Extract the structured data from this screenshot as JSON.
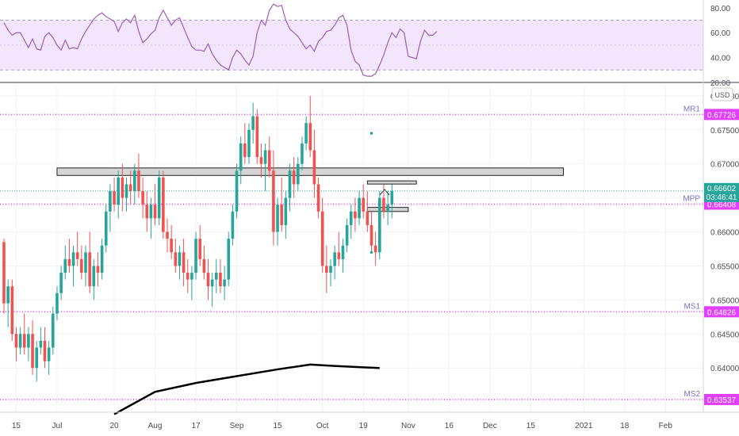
{
  "chart_data": [
    {
      "type": "line",
      "name": "RSI",
      "ylim": [
        20,
        85
      ],
      "y_ticks": [
        "80.00",
        "60.00",
        "40.00",
        "20.00"
      ],
      "y_tick_values": [
        80,
        60,
        40,
        20
      ],
      "bands": [
        70,
        30
      ],
      "mid": 50,
      "values": [
        68,
        62,
        58,
        60,
        60,
        54,
        48,
        55,
        47,
        46,
        57,
        60,
        56,
        50,
        46,
        54,
        47,
        48,
        47,
        55,
        61,
        66,
        71,
        74,
        76,
        73,
        71,
        69,
        61,
        68,
        71,
        68,
        74,
        61,
        52,
        55,
        59,
        62,
        72,
        78,
        72,
        66,
        70,
        72,
        64,
        56,
        49,
        46,
        46,
        45,
        51,
        43,
        38,
        34,
        32,
        30,
        40,
        46,
        43,
        38,
        34,
        41,
        60,
        70,
        66,
        78,
        83,
        81,
        82,
        70,
        63,
        60,
        57,
        52,
        47,
        50,
        45,
        53,
        56,
        61,
        62,
        66,
        72,
        74,
        66,
        46,
        37,
        34,
        26,
        25,
        25,
        27,
        34,
        42,
        52,
        60,
        56,
        63,
        60,
        41,
        40,
        39,
        53,
        62,
        58,
        58,
        61
      ],
      "color": "#9c5fb5"
    },
    {
      "type": "candlestick",
      "name": "AUD/USD",
      "currency": "USD",
      "ylim": [
        0.6335,
        0.6815
      ],
      "y_ticks": [
        "0.68000",
        "0.67500",
        "0.67000",
        "0.66500",
        "0.66000",
        "0.65500",
        "0.65000",
        "0.64500",
        "0.64000"
      ],
      "y_tick_values": [
        0.68,
        0.675,
        0.67,
        0.665,
        0.66,
        0.655,
        0.65,
        0.645,
        0.64
      ],
      "x_ticks": [
        {
          "label": "15",
          "index": 3
        },
        {
          "label": "Jul",
          "index": 13
        },
        {
          "label": "20",
          "index": 27
        },
        {
          "label": "Aug",
          "index": 37
        },
        {
          "label": "17",
          "index": 47
        },
        {
          "label": "Sep",
          "index": 57
        },
        {
          "label": "15",
          "index": 67
        },
        {
          "label": "Oct",
          "index": 78
        },
        {
          "label": "19",
          "index": 88
        },
        {
          "label": "Nov",
          "index": 99
        },
        {
          "label": "16",
          "index": 109
        },
        {
          "label": "Dec",
          "index": 119
        },
        {
          "label": "15",
          "index": 129
        },
        {
          "label": "2021",
          "index": 142
        },
        {
          "label": "18",
          "index": 152
        },
        {
          "label": "Feb",
          "index": 162
        }
      ],
      "candles": [
        [
          0.6585,
          0.659,
          0.648,
          0.6495
        ],
        [
          0.6495,
          0.653,
          0.646,
          0.652
        ],
        [
          0.652,
          0.653,
          0.644,
          0.645
        ],
        [
          0.645,
          0.646,
          0.641,
          0.643
        ],
        [
          0.643,
          0.646,
          0.642,
          0.645
        ],
        [
          0.645,
          0.648,
          0.642,
          0.643
        ],
        [
          0.643,
          0.646,
          0.641,
          0.645
        ],
        [
          0.645,
          0.647,
          0.639,
          0.64
        ],
        [
          0.64,
          0.644,
          0.638,
          0.643
        ],
        [
          0.643,
          0.646,
          0.642,
          0.644
        ],
        [
          0.644,
          0.646,
          0.64,
          0.641
        ],
        [
          0.641,
          0.644,
          0.639,
          0.643
        ],
        [
          0.643,
          0.649,
          0.642,
          0.648
        ],
        [
          0.648,
          0.652,
          0.647,
          0.651
        ],
        [
          0.651,
          0.655,
          0.65,
          0.654
        ],
        [
          0.654,
          0.658,
          0.653,
          0.656
        ],
        [
          0.656,
          0.659,
          0.654,
          0.655
        ],
        [
          0.655,
          0.658,
          0.652,
          0.657
        ],
        [
          0.657,
          0.66,
          0.655,
          0.656
        ],
        [
          0.656,
          0.658,
          0.653,
          0.654
        ],
        [
          0.654,
          0.658,
          0.652,
          0.657
        ],
        [
          0.657,
          0.66,
          0.651,
          0.652
        ],
        [
          0.652,
          0.656,
          0.65,
          0.655
        ],
        [
          0.655,
          0.657,
          0.652,
          0.654
        ],
        [
          0.654,
          0.659,
          0.653,
          0.658
        ],
        [
          0.658,
          0.664,
          0.657,
          0.663
        ],
        [
          0.663,
          0.667,
          0.66,
          0.666
        ],
        [
          0.666,
          0.668,
          0.663,
          0.664
        ],
        [
          0.664,
          0.669,
          0.662,
          0.668
        ],
        [
          0.668,
          0.67,
          0.663,
          0.665
        ],
        [
          0.665,
          0.668,
          0.663,
          0.667
        ],
        [
          0.667,
          0.669,
          0.664,
          0.666
        ],
        [
          0.666,
          0.67,
          0.664,
          0.669
        ],
        [
          0.669,
          0.6715,
          0.665,
          0.666
        ],
        [
          0.666,
          0.668,
          0.662,
          0.664
        ],
        [
          0.664,
          0.666,
          0.66,
          0.662
        ],
        [
          0.662,
          0.665,
          0.659,
          0.664
        ],
        [
          0.664,
          0.667,
          0.661,
          0.662
        ],
        [
          0.662,
          0.669,
          0.661,
          0.668
        ],
        [
          0.668,
          0.669,
          0.659,
          0.66
        ],
        [
          0.66,
          0.662,
          0.657,
          0.659
        ],
        [
          0.659,
          0.661,
          0.656,
          0.657
        ],
        [
          0.657,
          0.659,
          0.654,
          0.655
        ],
        [
          0.655,
          0.658,
          0.653,
          0.657
        ],
        [
          0.657,
          0.659,
          0.652,
          0.654
        ],
        [
          0.654,
          0.656,
          0.651,
          0.653
        ],
        [
          0.653,
          0.655,
          0.65,
          0.654
        ],
        [
          0.654,
          0.66,
          0.653,
          0.659
        ],
        [
          0.659,
          0.661,
          0.655,
          0.656
        ],
        [
          0.656,
          0.658,
          0.653,
          0.654
        ],
        [
          0.654,
          0.656,
          0.65,
          0.652
        ],
        [
          0.652,
          0.654,
          0.649,
          0.653
        ],
        [
          0.653,
          0.656,
          0.651,
          0.654
        ],
        [
          0.654,
          0.656,
          0.651,
          0.652
        ],
        [
          0.652,
          0.655,
          0.65,
          0.653
        ],
        [
          0.653,
          0.66,
          0.652,
          0.659
        ],
        [
          0.659,
          0.664,
          0.658,
          0.663
        ],
        [
          0.663,
          0.67,
          0.662,
          0.669
        ],
        [
          0.669,
          0.674,
          0.667,
          0.673
        ],
        [
          0.673,
          0.676,
          0.67,
          0.671
        ],
        [
          0.671,
          0.676,
          0.67,
          0.675
        ],
        [
          0.675,
          0.679,
          0.673,
          0.677
        ],
        [
          0.677,
          0.678,
          0.67,
          0.671
        ],
        [
          0.671,
          0.673,
          0.668,
          0.67
        ],
        [
          0.67,
          0.673,
          0.666,
          0.672
        ],
        [
          0.672,
          0.674,
          0.668,
          0.669
        ],
        [
          0.669,
          0.672,
          0.658,
          0.66
        ],
        [
          0.66,
          0.665,
          0.658,
          0.664
        ],
        [
          0.664,
          0.668,
          0.66,
          0.661
        ],
        [
          0.661,
          0.666,
          0.659,
          0.665
        ],
        [
          0.665,
          0.67,
          0.663,
          0.669
        ],
        [
          0.669,
          0.671,
          0.665,
          0.667
        ],
        [
          0.667,
          0.671,
          0.666,
          0.67
        ],
        [
          0.67,
          0.674,
          0.669,
          0.673
        ],
        [
          0.673,
          0.677,
          0.672,
          0.676
        ],
        [
          0.676,
          0.68,
          0.671,
          0.672
        ],
        [
          0.672,
          0.675,
          0.665,
          0.667
        ],
        [
          0.667,
          0.668,
          0.662,
          0.663
        ],
        [
          0.663,
          0.665,
          0.654,
          0.655
        ],
        [
          0.655,
          0.658,
          0.651,
          0.654
        ],
        [
          0.654,
          0.656,
          0.652,
          0.655
        ],
        [
          0.655,
          0.658,
          0.653,
          0.657
        ],
        [
          0.657,
          0.66,
          0.655,
          0.656
        ],
        [
          0.656,
          0.659,
          0.654,
          0.658
        ],
        [
          0.658,
          0.662,
          0.657,
          0.661
        ],
        [
          0.661,
          0.664,
          0.659,
          0.663
        ],
        [
          0.663,
          0.665,
          0.66,
          0.662
        ],
        [
          0.662,
          0.666,
          0.661,
          0.665
        ],
        [
          0.665,
          0.667,
          0.662,
          0.663
        ],
        [
          0.663,
          0.666,
          0.66,
          0.661
        ],
        [
          0.661,
          0.663,
          0.657,
          0.658
        ],
        [
          0.658,
          0.66,
          0.655,
          0.657
        ],
        [
          0.657,
          0.666,
          0.656,
          0.665
        ],
        [
          0.665,
          0.667,
          0.662,
          0.663
        ],
        [
          0.663,
          0.666,
          0.661,
          0.664
        ],
        [
          0.664,
          0.667,
          0.662,
          0.666
        ]
      ],
      "candle_colors": {
        "up": "#26a69a",
        "down": "#ef5350"
      },
      "levels": [
        {
          "label": "MR1",
          "price_label": "0.67726",
          "value": 0.67726,
          "color": "#e040fb"
        },
        {
          "label": "MPP",
          "price_label": "0.66408",
          "value": 0.66408,
          "color": "#e040fb"
        },
        {
          "label": "MS1",
          "price_label": "0.64826",
          "value": 0.64826,
          "color": "#e040fb"
        },
        {
          "label": "MS2",
          "price_label": "0.63537",
          "value": 0.63537,
          "color": "#e040fb"
        }
      ],
      "current_price": {
        "price_label": "0.66602",
        "value": 0.66602,
        "countdown": "03:46:41",
        "color": "#26a69a"
      },
      "zones": [
        {
          "from_index": 13,
          "to_index": 137,
          "top": 0.6694,
          "bottom": 0.6683
        },
        {
          "from_index": 89,
          "to_index": 101,
          "top": 0.6675,
          "bottom": 0.6671
        },
        {
          "from_index": 89,
          "to_index": 99,
          "top": 0.6636,
          "bottom": 0.663
        }
      ],
      "moving_average": {
        "color": "#000000",
        "points": [
          [
            27,
            0.6332
          ],
          [
            37,
            0.6365
          ],
          [
            47,
            0.6378
          ],
          [
            57,
            0.6388
          ],
          [
            67,
            0.6398
          ],
          [
            75,
            0.6405
          ],
          [
            81,
            0.6403
          ],
          [
            88,
            0.6401
          ],
          [
            92,
            0.64
          ]
        ]
      },
      "markers": [
        {
          "index": 90,
          "value": 0.6745
        },
        {
          "index": 90,
          "value": 0.657
        }
      ]
    }
  ]
}
